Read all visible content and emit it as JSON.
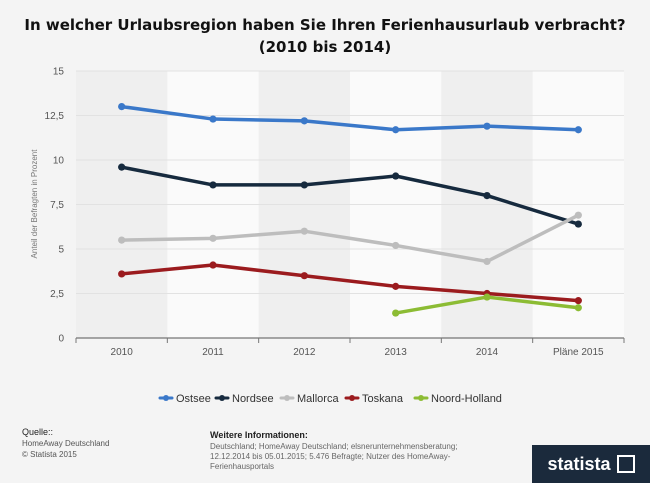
{
  "chart_data": {
    "type": "line",
    "title": "In welcher Urlaubsregion haben Sie Ihren Ferienhausurlaub verbracht? (2010 bis 2014)",
    "ylabel": "Anteil der Befragten in Prozent",
    "xlabel": "",
    "categories": [
      "2010",
      "2011",
      "2012",
      "2013",
      "2014",
      "Pläne 2015"
    ],
    "ylim": [
      0,
      15
    ],
    "yticks": [
      0,
      2.5,
      5,
      7.5,
      10,
      12.5,
      15
    ],
    "ytick_labels": [
      "0",
      "2,5",
      "5",
      "7,5",
      "10",
      "12,5",
      "15"
    ],
    "legend_position": "bottom",
    "grid": true,
    "series": [
      {
        "name": "Ostsee",
        "color": "#3a78c9",
        "values": [
          13.0,
          12.3,
          12.2,
          11.7,
          11.9,
          11.7
        ]
      },
      {
        "name": "Nordsee",
        "color": "#162a3e",
        "values": [
          9.6,
          8.6,
          8.6,
          9.1,
          8.0,
          6.4
        ]
      },
      {
        "name": "Mallorca",
        "color": "#bdbdbd",
        "values": [
          5.5,
          5.6,
          6.0,
          5.2,
          4.3,
          6.9
        ]
      },
      {
        "name": "Toskana",
        "color": "#9b1b1e",
        "values": [
          3.6,
          4.1,
          3.5,
          2.9,
          2.5,
          2.1
        ]
      },
      {
        "name": "Noord-Holland",
        "color": "#8cbc34",
        "values": [
          null,
          null,
          null,
          1.4,
          2.3,
          1.7
        ]
      }
    ]
  },
  "footer": {
    "source_title": "Quelle::",
    "source_lines": [
      "HomeAway Deutschland",
      "© Statista 2015"
    ],
    "info_title": "Weitere Informationen:",
    "info_text": "Deutschland; HomeAway Deutschland; elsnerunternehmensberatung; 12.12.2014 bis 05.01.2015; 5.476 Befragte; Nutzer des HomeAway-Ferienhausportals"
  },
  "logo": {
    "text": "statista",
    "icon": "statista-logo-icon"
  }
}
